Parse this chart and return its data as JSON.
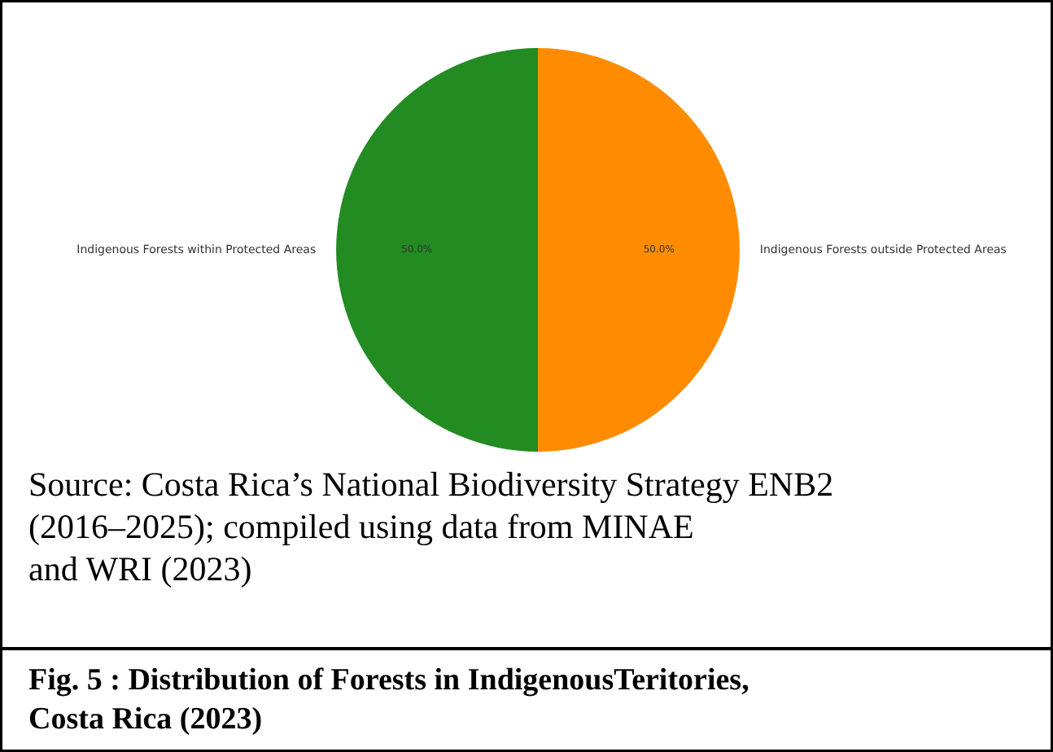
{
  "chart_data": {
    "type": "pie",
    "title": "Fig. 5 :   Distribution of Forests in IndigenousTeritories, Costa Rica (2023)",
    "categories": [
      "Indigenous Forests within Protected Areas",
      "Indigenous Forests outside Protected Areas"
    ],
    "values": [
      50,
      50
    ],
    "colors": [
      "#228b22",
      "#ff8c00"
    ],
    "value_labels": [
      "50.0%",
      "50.0%"
    ],
    "annotations": [
      "Source: Costa Rica’s National Biodiversity Strategy ENB2 (2016–2025); compiled using data from MINAE and WRI (2023)"
    ]
  }
}
